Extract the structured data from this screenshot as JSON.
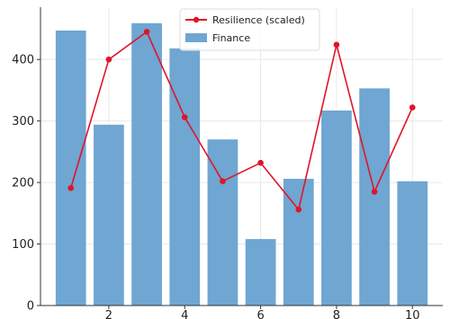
{
  "chart_data": {
    "type": "bar",
    "x": [
      1,
      2,
      3,
      4,
      5,
      6,
      7,
      8,
      9,
      10
    ],
    "xticks": [
      2,
      4,
      6,
      8,
      10
    ],
    "yticks": [
      0,
      100,
      200,
      300,
      400
    ],
    "xlim": [
      0.2,
      10.8
    ],
    "ylim": [
      0,
      485
    ],
    "grid": true,
    "legend_position": "top-center",
    "series": [
      {
        "name": "Finance",
        "type": "bar",
        "color": "#6fa6d2",
        "values": [
          447,
          294,
          459,
          418,
          270,
          108,
          206,
          317,
          353,
          202
        ]
      },
      {
        "name": "Resilience (scaled)",
        "type": "line",
        "color": "#e0142a",
        "values": [
          191,
          400,
          445,
          306,
          202,
          232,
          156,
          424,
          185,
          322
        ]
      }
    ]
  }
}
